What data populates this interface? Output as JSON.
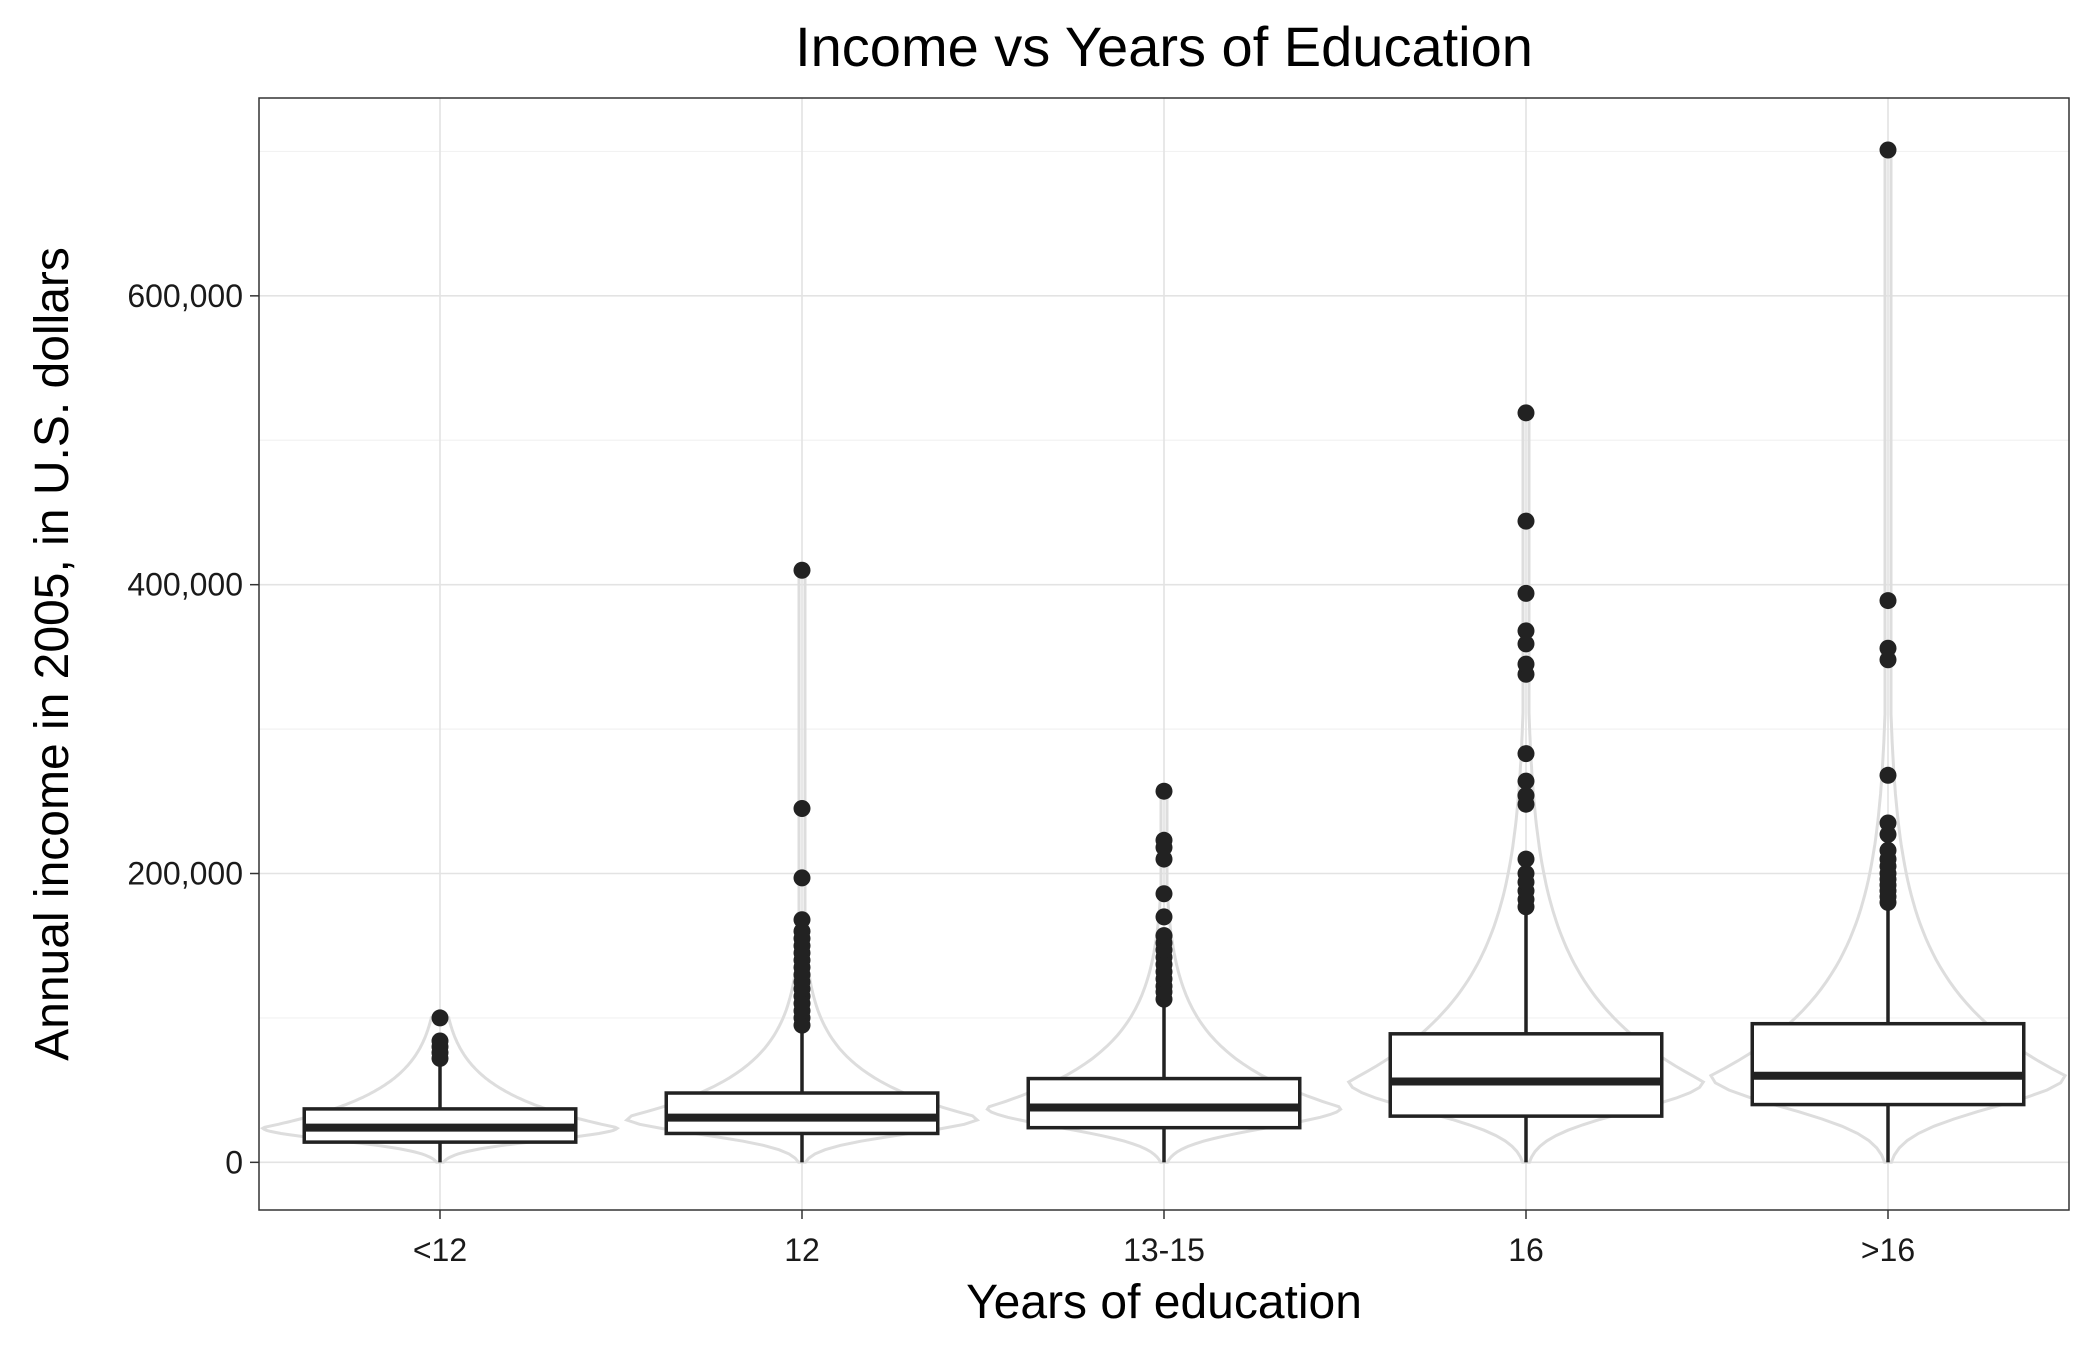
{
  "chart_data": {
    "type": "boxplot",
    "title": "Income vs Years of Education",
    "xlabel": "Years of education",
    "ylabel": "Annual income in 2005, in U.S. dollars",
    "ylim": [
      -33000,
      737000
    ],
    "y_ticks": [
      0,
      200000,
      400000,
      600000
    ],
    "y_tick_labels": [
      "0",
      "200,000",
      "400,000",
      "600,000"
    ],
    "grid": true,
    "violin_overlay": true,
    "categories": [
      "<12",
      "12",
      "13-15",
      "16",
      ">16"
    ],
    "boxes": [
      {
        "category": "<12",
        "lower_whisker": 0,
        "q1": 14000,
        "median": 24000,
        "q3": 37000,
        "upper_whisker": 70000,
        "outliers": [
          72000,
          76000,
          80000,
          84000,
          100000
        ]
      },
      {
        "category": "12",
        "lower_whisker": 0,
        "q1": 20000,
        "median": 31000,
        "q3": 48000,
        "upper_whisker": 93000,
        "outliers": [
          95000,
          100000,
          105000,
          110000,
          115000,
          120000,
          125000,
          130000,
          135000,
          140000,
          145000,
          150000,
          155000,
          160000,
          168000,
          197000,
          245000,
          410000
        ]
      },
      {
        "category": "13-15",
        "lower_whisker": 0,
        "q1": 24000,
        "median": 38000,
        "q3": 58000,
        "upper_whisker": 110000,
        "outliers": [
          113000,
          118000,
          122000,
          127000,
          132000,
          137000,
          142000,
          147000,
          152000,
          157000,
          170000,
          186000,
          210000,
          218000,
          223000,
          257000
        ]
      },
      {
        "category": "16",
        "lower_whisker": 0,
        "q1": 32000,
        "median": 56000,
        "q3": 89000,
        "upper_whisker": 175000,
        "outliers": [
          177000,
          182000,
          188000,
          194000,
          200000,
          210000,
          248000,
          254000,
          264000,
          283000,
          338000,
          345000,
          359000,
          368000,
          394000,
          444000,
          519000
        ]
      },
      {
        "category": ">16",
        "lower_whisker": 0,
        "q1": 40000,
        "median": 60000,
        "q3": 96000,
        "upper_whisker": 178000,
        "outliers": [
          180000,
          184000,
          188000,
          192000,
          196000,
          200000,
          205000,
          210000,
          216000,
          227000,
          235000,
          268000,
          348000,
          356000,
          389000,
          701000
        ]
      }
    ]
  }
}
